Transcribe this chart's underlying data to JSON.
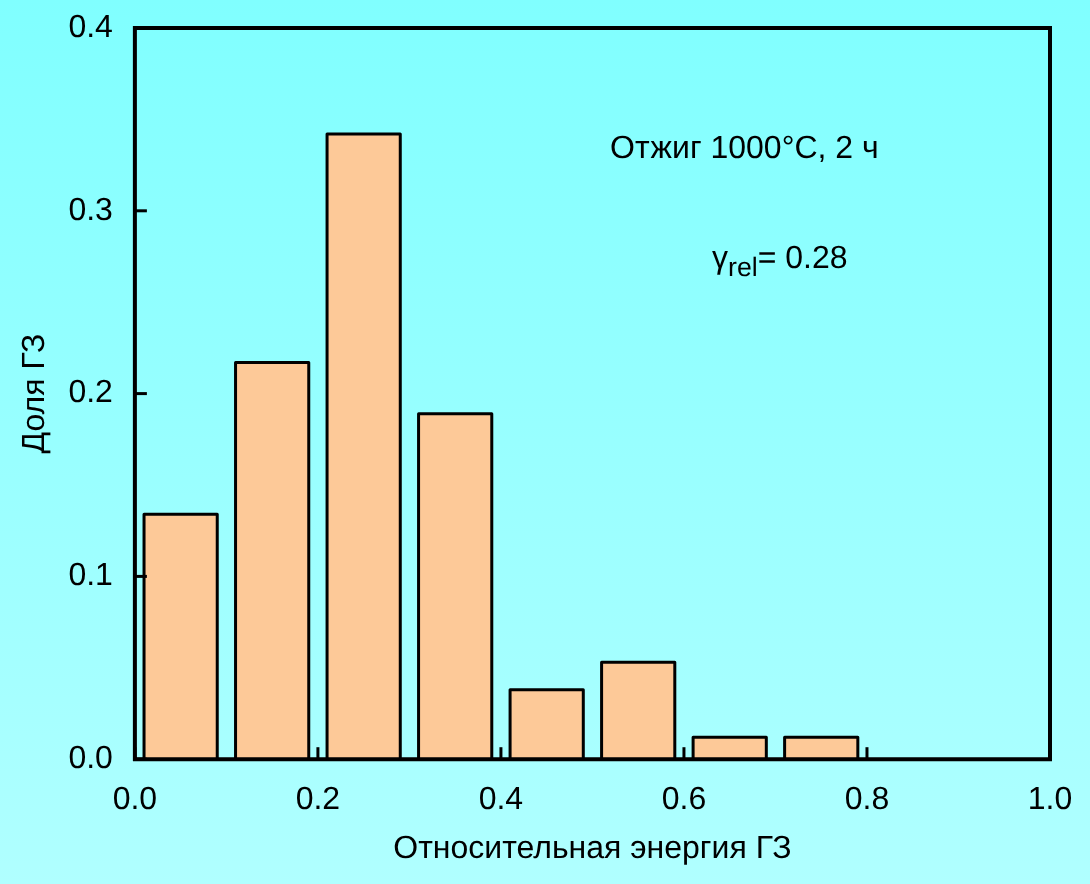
{
  "chart_data": {
    "type": "histogram",
    "xlabel": "Относительная энергия ГЗ",
    "ylabel": "Доля ГЗ",
    "bins": [
      0,
      0.1,
      0.2,
      0.3,
      0.4,
      0.5,
      0.6,
      0.7,
      0.8
    ],
    "values": [
      0.134,
      0.217,
      0.342,
      0.189,
      0.038,
      0.053,
      0.012,
      0.012
    ],
    "color": "#fdc998",
    "xlim": [
      0,
      1
    ],
    "xticks": [
      {
        "value": 0,
        "label": "0.0"
      },
      {
        "value": 0.2,
        "label": "0.2"
      },
      {
        "value": 0.4,
        "label": "0.4"
      },
      {
        "value": 0.6,
        "label": "0.6"
      },
      {
        "value": 0.8,
        "label": "0.8"
      },
      {
        "value": 1,
        "label": "1.0"
      }
    ],
    "ylim": [
      0,
      0.4
    ],
    "yticks": [
      {
        "value": 0,
        "label": "0.0"
      },
      {
        "value": 0.1,
        "label": "0.1"
      },
      {
        "value": 0.2,
        "label": "0.2"
      },
      {
        "value": 0.3,
        "label": "0.3"
      },
      {
        "value": 0.4,
        "label": "0.4"
      }
    ],
    "annotations": [
      "Отжиг 1000°C, 2 ч",
      "γ$_{rel}$= 0.28"
    ]
  }
}
